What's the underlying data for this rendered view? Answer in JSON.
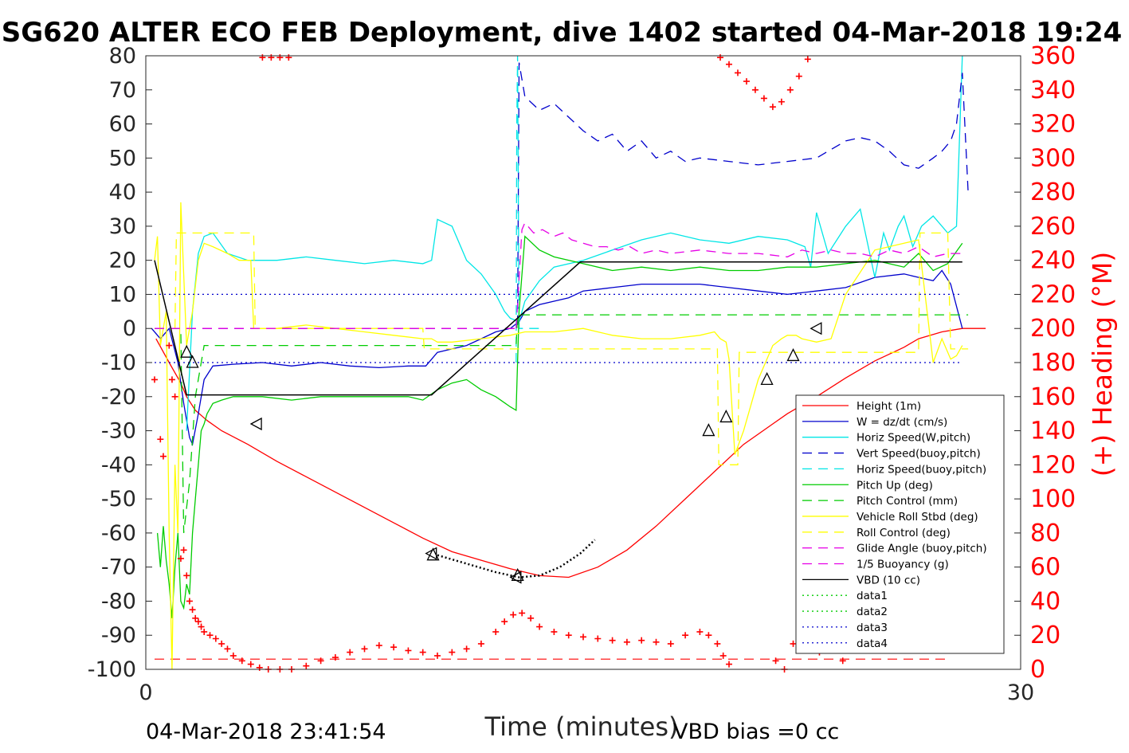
{
  "chart_data": {
    "type": "line",
    "title": "SG620 ALTER ECO FEB Deployment, dive 1402 started 04-Mar-2018 19:24",
    "xlabel": "Time (minutes)",
    "ylabel": "",
    "ylabel_right": "(+) Heading (°M)",
    "xlim": [
      0,
      30
    ],
    "ylim": [
      -100,
      80
    ],
    "ylim_right": [
      0,
      360
    ],
    "x_ticks": [
      "0",
      "30"
    ],
    "y_ticks": [
      "80",
      "70",
      "60",
      "50",
      "40",
      "30",
      "20",
      "10",
      "0",
      "-10",
      "-20",
      "-30",
      "-40",
      "-50",
      "-60",
      "-70",
      "-80",
      "-90",
      "-100"
    ],
    "y_ticks_right": [
      "360",
      "340",
      "320",
      "300",
      "280",
      "260",
      "240",
      "220",
      "200",
      "180",
      "160",
      "140",
      "120",
      "100",
      "80",
      "60",
      "40",
      "20",
      "0"
    ],
    "footer_left": "04-Mar-2018 23:41:54",
    "footer_right": "VBD bias =0 cc",
    "legend_position": "lower-right",
    "colors": {
      "height": "#ff0000",
      "w": "#0000cc",
      "horiz": "#00e6e6",
      "vert_buoy": "#0000cc",
      "horiz_buoy": "#00e6e6",
      "pitch": "#00cc00",
      "pitch_ctrl": "#00cc00",
      "roll": "#ffff00",
      "roll_ctrl": "#ffff00",
      "glide": "#e600e6",
      "buoyancy": "#e600e6",
      "vbd": "#000000",
      "data1": "#00cc00",
      "data2": "#00cc00",
      "data3": "#0000cc",
      "data4": "#0000cc"
    },
    "series": [
      {
        "name": "Height (1m)",
        "key": "height",
        "style": "solid",
        "x": [
          0.35,
          0.8,
          1.2,
          1.4,
          1.7,
          2.1,
          2.6,
          3.5,
          4.5,
          5.5,
          6.5,
          7.5,
          8.5,
          9.5,
          10.5,
          11.5,
          12.5,
          13.5,
          14.5,
          15.5,
          16.5,
          17.5,
          18.5,
          19.5,
          20.5,
          21.5,
          22.0,
          23.0,
          24.0,
          25.0,
          26.0,
          26.5,
          27.3,
          28.0,
          28.8
        ],
        "y": [
          -3,
          -10,
          -16,
          -20,
          -24,
          -27,
          -30,
          -34,
          -39,
          -43.5,
          -48,
          -52.5,
          -57,
          -61.5,
          -65.5,
          -68,
          -70.5,
          -72.5,
          -73,
          -70,
          -65,
          -58,
          -50,
          -42,
          -34,
          -28,
          -25,
          -20,
          -14.5,
          -9.5,
          -5.5,
          -3,
          -1,
          0,
          0
        ]
      },
      {
        "name": "W = dz/dt (cm/s)",
        "key": "w",
        "style": "solid",
        "x": [
          0.2,
          0.5,
          0.8,
          1.1,
          1.3,
          1.5,
          1.6,
          1.8,
          2.0,
          2.3,
          3.0,
          4.0,
          5.0,
          6.0,
          7.0,
          8.0,
          9.0,
          9.6,
          10.0,
          10.5,
          11.0,
          11.5,
          12.0,
          12.5,
          12.8,
          13.0,
          13.5,
          14.0,
          14.5,
          15.0,
          16.0,
          17.0,
          18.0,
          19.0,
          20.0,
          21.0,
          22.0,
          23.0,
          24.0,
          25.0,
          26.0,
          26.5,
          27.0,
          27.3,
          27.6,
          28.0
        ],
        "y": [
          0,
          -3,
          0,
          -10,
          -22,
          -32,
          -34,
          -25,
          -15,
          -11,
          -10.5,
          -10,
          -11,
          -10,
          -11,
          -11.5,
          -11,
          -11,
          -7,
          -6,
          -5,
          -3,
          -1,
          0,
          2,
          5,
          7,
          8,
          9,
          11,
          12,
          13,
          13,
          13,
          12,
          11,
          10,
          11,
          12,
          15,
          16,
          15,
          14,
          17,
          13,
          0
        ]
      },
      {
        "name": "Horiz Speed(W,pitch)",
        "key": "horiz",
        "style": "solid",
        "x": [
          1.4,
          1.6,
          1.8,
          2.0,
          2.3,
          2.8,
          3.5,
          4.5,
          5.5,
          6.5,
          7.5,
          8.5,
          9.5,
          9.8,
          10.0,
          10.5,
          11.0,
          11.5,
          12.0,
          12.3,
          12.5,
          12.8,
          13.0,
          13.5,
          14.0,
          15.0,
          16.0,
          17.0,
          18.0,
          19.0,
          20.0,
          21.0,
          22.0,
          22.6,
          22.8,
          23.0,
          23.4,
          24.0,
          24.5,
          25.0,
          25.3,
          25.5,
          25.8,
          26.0,
          26.3,
          26.6,
          27.0,
          27.5,
          27.8,
          28.0
        ],
        "y": [
          -30,
          5,
          22,
          27,
          28,
          22,
          20,
          20,
          21,
          20,
          19,
          20,
          19,
          20,
          32,
          30,
          20,
          16,
          10,
          5,
          3,
          2,
          8,
          14,
          18,
          20,
          23,
          26,
          28,
          26,
          25,
          27,
          26,
          24,
          18,
          34,
          22,
          30,
          35,
          15,
          28,
          23,
          30,
          33,
          24,
          30,
          33,
          28,
          30,
          80
        ]
      },
      {
        "name": "Vert Speed(buoy,pitch)",
        "key": "vert_buoy",
        "style": "dash",
        "x": [
          0.3,
          1.5,
          3,
          5,
          7,
          9,
          10,
          11,
          12,
          12.75,
          12.8,
          13.0,
          13.5,
          14.0,
          14.5,
          15.0,
          15.5,
          16.0,
          16.5,
          17.0,
          17.5,
          18.0,
          18.5,
          19.0,
          20.0,
          21.0,
          22.0,
          23.0,
          24.0,
          24.5,
          25.0,
          25.5,
          26.0,
          26.5,
          27.0,
          27.3,
          27.6,
          27.8,
          28.0,
          28.2
        ],
        "y": [
          0,
          0,
          0,
          0,
          0,
          0,
          0,
          0,
          0,
          0,
          78,
          68,
          64,
          66,
          62,
          58,
          55,
          57,
          52,
          55,
          50,
          52,
          49,
          50,
          49,
          48,
          49,
          50,
          55,
          56,
          55,
          52,
          48,
          47,
          50,
          52,
          55,
          60,
          75,
          40
        ]
      },
      {
        "name": "Horiz Speed(buoy,pitch)",
        "key": "horiz_buoy",
        "style": "dash",
        "x": [
          12.7,
          12.72,
          12.75,
          12.8,
          12.9,
          13.5
        ],
        "y": [
          -10,
          60,
          80,
          0,
          0,
          0
        ]
      },
      {
        "name": "Pitch Up (deg)",
        "key": "pitch",
        "style": "solid",
        "x": [
          0.4,
          0.5,
          0.6,
          0.7,
          0.8,
          0.9,
          1.0,
          1.1,
          1.2,
          1.3,
          1.4,
          1.5,
          1.6,
          1.7,
          1.8,
          1.9,
          2.0,
          2.1,
          2.3,
          2.6,
          3.0,
          4.0,
          5.0,
          6.0,
          7.0,
          8.0,
          9.0,
          9.5,
          10.0,
          10.5,
          11.0,
          11.5,
          12.0,
          12.5,
          12.7,
          12.8,
          13.0,
          13.5,
          14.0,
          15.0,
          16.0,
          17.0,
          18.0,
          19.0,
          20.0,
          21.0,
          22.0,
          23.0,
          24.0,
          25.0,
          26.0,
          26.5,
          27.0,
          27.5,
          28.0
        ],
        "y": [
          -60,
          -70,
          -58,
          -68,
          -75,
          -85,
          -70,
          -60,
          -80,
          -82,
          -75,
          -78,
          -60,
          -50,
          -40,
          -30,
          -28,
          -25,
          -22,
          -21,
          -20,
          -20,
          -21,
          -20,
          -20,
          -20,
          -20,
          -21,
          -18,
          -16,
          -15,
          -18,
          -20,
          -23,
          -24,
          5,
          27,
          23,
          21,
          19,
          17,
          18,
          17,
          18,
          17,
          17,
          18,
          18,
          19,
          20,
          18,
          22,
          17,
          19,
          25
        ]
      },
      {
        "name": "Pitch Control (mm)",
        "key": "pitch_ctrl",
        "style": "dash",
        "x": [
          0.3,
          1.2,
          1.3,
          1.5,
          1.7,
          2.0,
          5.0,
          9.0,
          11.0,
          12.7,
          12.75,
          15.0,
          20.0,
          25.0,
          28.2
        ],
        "y": [
          0,
          0,
          -60,
          -45,
          -20,
          -5,
          -5,
          -5,
          -5,
          -5,
          4,
          4,
          4,
          4,
          4
        ]
      },
      {
        "name": "Vehicle Roll Stbd (deg)",
        "key": "roll",
        "style": "solid",
        "x": [
          0.3,
          0.4,
          0.5,
          0.7,
          0.8,
          0.9,
          1.0,
          1.1,
          1.2,
          1.4,
          1.6,
          1.8,
          2.0,
          2.3,
          2.8,
          3.2,
          3.6,
          3.7,
          3.9,
          4.5,
          5.5,
          6.5,
          7.5,
          8.5,
          9.5,
          9.8,
          10.0,
          10.5,
          11.5,
          12.5,
          13.0,
          14.0,
          15.0,
          16.0,
          17.0,
          18.0,
          19.0,
          19.5,
          19.7,
          19.9,
          20.0,
          20.2,
          20.5,
          21.0,
          21.5,
          21.8,
          22.0,
          22.3,
          22.5,
          23.0,
          23.5,
          24.0,
          25.0,
          26.0,
          26.5,
          27.0,
          27.3,
          27.6,
          27.8,
          28.0
        ],
        "y": [
          20,
          27,
          -5,
          5,
          -60,
          -100,
          -40,
          -60,
          37,
          -5,
          5,
          20,
          25,
          24,
          22,
          20,
          20,
          0,
          0,
          0,
          1,
          0,
          -1,
          -2,
          -3,
          -3,
          -4,
          -4,
          -3,
          -2,
          -1,
          -1,
          0,
          -2,
          -3,
          -3,
          -2,
          -1,
          -3,
          -4,
          -9,
          -37,
          -30,
          -15,
          -5,
          -3,
          -2,
          -2,
          -3,
          -4,
          -3,
          10,
          23,
          25,
          26,
          -10,
          -3,
          -9,
          -8,
          -5
        ]
      },
      {
        "name": "Roll Control (deg)",
        "key": "roll_ctrl",
        "style": "dash",
        "x": [
          1.0,
          1.05,
          1.1,
          1.5,
          2.0,
          3.7,
          3.75,
          9.5,
          9.55,
          12.0,
          12.5,
          19.6,
          19.65,
          20.3,
          20.35,
          26.5,
          26.55,
          27.5,
          27.6,
          28.2
        ],
        "y": [
          0,
          28,
          28,
          28,
          28,
          28,
          0,
          0,
          -6,
          -6,
          -6,
          -6,
          -40,
          -40,
          -7,
          -7,
          28,
          28,
          -6,
          -6
        ]
      },
      {
        "name": "Glide Angle (buoy,pitch)",
        "key": "glide",
        "style": "dash",
        "x": [
          12.7,
          12.9,
          13.0,
          13.3,
          13.6,
          14.0,
          14.3,
          14.6,
          15.0,
          15.4,
          15.8,
          16.2,
          16.6,
          17.0,
          17.5,
          18.0,
          19.0,
          20.0,
          21.0,
          22.0,
          22.5,
          23.0,
          23.5,
          24.0,
          24.5,
          25.0,
          25.5,
          26.0,
          26.5,
          27.0,
          27.5,
          28.0
        ],
        "y": [
          0,
          29,
          31,
          28,
          29,
          27,
          28,
          26,
          25,
          24,
          24,
          23,
          24,
          22,
          23,
          22,
          23,
          22,
          22,
          21,
          23,
          22,
          23,
          22,
          22,
          21,
          23,
          22,
          24,
          21,
          22,
          22
        ]
      },
      {
        "name": "1/5 Buoyancy (g)",
        "key": "buoyancy",
        "style": "dash",
        "x": [
          0.3,
          5,
          12.7
        ],
        "y": [
          0,
          0,
          0
        ]
      },
      {
        "name": "VBD (10 cc)",
        "key": "vbd",
        "style": "solid",
        "x": [
          0.3,
          1.4,
          9.8,
          14.9,
          28.0
        ],
        "y": [
          20,
          -19.5,
          -19.5,
          19.5,
          19.5
        ]
      },
      {
        "name": "data1",
        "key": "data1",
        "style": "dot",
        "x": [],
        "y": []
      },
      {
        "name": "data2",
        "key": "data2",
        "style": "dot",
        "x": [],
        "y": []
      },
      {
        "name": "data3",
        "key": "data3",
        "style": "dot",
        "x": [
          0.3,
          28.0
        ],
        "y": [
          10,
          10
        ]
      },
      {
        "name": "data4",
        "key": "data4",
        "style": "dot",
        "x": [
          0.3,
          28.0
        ],
        "y": [
          -10,
          -10
        ]
      }
    ],
    "heading_ref": {
      "x": [
        0.3,
        27.5
      ],
      "y": [
        6,
        6
      ]
    },
    "heading_points": {
      "x": [
        0.3,
        0.5,
        0.6,
        0.8,
        0.9,
        1.0,
        1.2,
        1.3,
        1.4,
        1.5,
        1.6,
        1.7,
        1.8,
        1.9,
        2.0,
        2.2,
        2.4,
        2.6,
        2.8,
        3.0,
        3.3,
        3.6,
        3.9,
        4.2,
        4.6,
        5.0,
        5.5,
        6.0,
        6.5,
        7.0,
        7.5,
        8.0,
        8.5,
        9.0,
        9.5,
        10.0,
        10.5,
        11.0,
        11.5,
        12.0,
        12.3,
        12.6,
        12.9,
        13.2,
        13.5,
        14.0,
        14.5,
        15.0,
        15.5,
        16.0,
        16.5,
        17.0,
        17.5,
        18.0,
        18.5,
        19.0,
        19.3,
        19.6,
        19.8,
        20.0,
        4.0,
        4.3,
        4.6,
        4.9,
        19.7,
        20.0,
        20.3,
        20.6,
        20.9,
        21.2,
        21.5,
        21.8,
        22.1,
        22.4,
        22.7,
        21.6,
        21.9,
        22.2,
        22.5,
        22.8,
        23.1,
        23.3,
        23.6,
        23.9
      ],
      "y": [
        170,
        135,
        125,
        190,
        170,
        160,
        65,
        70,
        55,
        40,
        35,
        30,
        28,
        25,
        22,
        20,
        18,
        15,
        12,
        8,
        5,
        3,
        1,
        0,
        0,
        0,
        2,
        5,
        7,
        10,
        12,
        14,
        13,
        11,
        10,
        8,
        10,
        12,
        15,
        22,
        28,
        32,
        33,
        30,
        25,
        22,
        20,
        19,
        18,
        17,
        16,
        17,
        16,
        15,
        20,
        22,
        20,
        15,
        8,
        3,
        359,
        359,
        359,
        359,
        359,
        355,
        350,
        345,
        340,
        335,
        330,
        333,
        340,
        348,
        358,
        5,
        0,
        15,
        20,
        18,
        10,
        20,
        18,
        5
      ],
      "marker": "+",
      "color": "#ff0000"
    },
    "triangles": {
      "x": [
        1.4,
        1.6,
        3.8,
        9.8,
        9.85,
        12.7,
        12.75,
        19.3,
        19.9,
        21.3,
        22.2,
        23.0
      ],
      "y": [
        -7,
        -10,
        -28,
        -66,
        -66.5,
        -73,
        -72.5,
        -30,
        -26,
        -15,
        -8,
        0
      ]
    }
  }
}
